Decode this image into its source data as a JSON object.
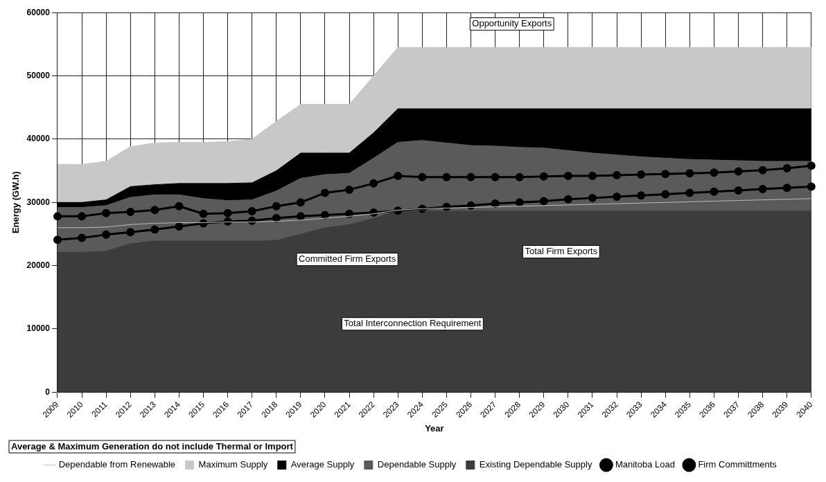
{
  "chart_data": {
    "type": "area",
    "xlabel": "Year",
    "ylabel": "Energy (GW.h)",
    "categories": [
      "2009",
      "2010",
      "2011",
      "2012",
      "2013",
      "2014",
      "2015",
      "2016",
      "2017",
      "2018",
      "2019",
      "2020",
      "2021",
      "2022",
      "2023",
      "2024",
      "2025",
      "2026",
      "2027",
      "2028",
      "2029",
      "2030",
      "2031",
      "2032",
      "2033",
      "2034",
      "2035",
      "2036",
      "2037",
      "2038",
      "2039",
      "2040"
    ],
    "ylim": [
      0,
      60000
    ],
    "yticks": [
      0,
      10000,
      20000,
      30000,
      40000,
      50000,
      60000
    ],
    "grid": true,
    "legend": "bottom",
    "series": [
      {
        "name": "Maximum Supply",
        "color": "#c8c8c8",
        "values": [
          36000,
          36000,
          36500,
          38800,
          39400,
          39500,
          39500,
          39600,
          40000,
          42800,
          45500,
          45500,
          45500,
          50000,
          54500,
          54500,
          54500,
          54500,
          54500,
          54500,
          54500,
          54500,
          54500,
          54500,
          54500,
          54500,
          54500,
          54500,
          54500,
          54500,
          54500,
          54500
        ]
      },
      {
        "name": "Average Supply",
        "color": "#000000",
        "values": [
          30000,
          30000,
          30400,
          32500,
          32800,
          33000,
          33000,
          33000,
          33100,
          35000,
          37800,
          37800,
          37800,
          41000,
          44800,
          44800,
          44800,
          44800,
          44800,
          44800,
          44800,
          44800,
          44800,
          44800,
          44800,
          44800,
          44800,
          44800,
          44800,
          44800,
          44800,
          44800
        ]
      },
      {
        "name": "Dependable Supply",
        "color": "#5a5a5a",
        "values": [
          29200,
          29200,
          29500,
          30800,
          31200,
          31200,
          30600,
          30300,
          30400,
          31800,
          33800,
          34400,
          34600,
          37000,
          39500,
          39800,
          39400,
          39000,
          38900,
          38700,
          38600,
          38200,
          37800,
          37500,
          37200,
          37000,
          36800,
          36700,
          36600,
          36500,
          36500,
          36500
        ]
      },
      {
        "name": "Existing Dependable Supply",
        "color": "#3c3c3c",
        "values": [
          22100,
          22100,
          22300,
          23500,
          23900,
          23900,
          23900,
          23900,
          23900,
          24000,
          25000,
          26000,
          26500,
          27500,
          28700,
          28700,
          28700,
          28700,
          28700,
          28700,
          28700,
          28700,
          28700,
          28700,
          28700,
          28700,
          28700,
          28700,
          28700,
          28700,
          28700,
          28700
        ]
      },
      {
        "name": "Manitoba Load",
        "type": "line",
        "color": "#000000",
        "marker": "circle",
        "values": [
          24100,
          24400,
          24900,
          25300,
          25700,
          26200,
          26700,
          27000,
          27100,
          27500,
          27800,
          28000,
          28200,
          28400,
          28700,
          29000,
          29300,
          29500,
          29800,
          30000,
          30200,
          30500,
          30700,
          30900,
          31100,
          31300,
          31500,
          31700,
          31900,
          32100,
          32300,
          32500
        ]
      },
      {
        "name": "Firm Committments",
        "type": "line",
        "color": "#000000",
        "marker": "circle",
        "values": [
          27800,
          27800,
          28300,
          28500,
          28800,
          29400,
          28200,
          28300,
          28600,
          29400,
          30000,
          31500,
          32000,
          33000,
          34200,
          34000,
          34000,
          34000,
          34000,
          34000,
          34100,
          34200,
          34200,
          34300,
          34400,
          34500,
          34600,
          34700,
          34900,
          35100,
          35400,
          35800
        ]
      },
      {
        "name": "Dependable from Renewable",
        "type": "line",
        "color": "#bdbdbd",
        "marker": "none",
        "values": [
          26000,
          26000,
          26100,
          26500,
          26700,
          26800,
          26800,
          26900,
          26900,
          27000,
          27200,
          27500,
          27800,
          28200,
          28800,
          29000,
          29100,
          29200,
          29300,
          29400,
          29500,
          29600,
          29700,
          29800,
          29900,
          30000,
          30100,
          30200,
          30300,
          30400,
          30500,
          30600
        ]
      }
    ],
    "annotations": [
      "Opportunity Exports",
      "Committed Firm Exports",
      "Total Firm Exports",
      "Total Interconnection Requirement",
      "Average & Maximum Generation do not include Thermal or Import"
    ]
  }
}
